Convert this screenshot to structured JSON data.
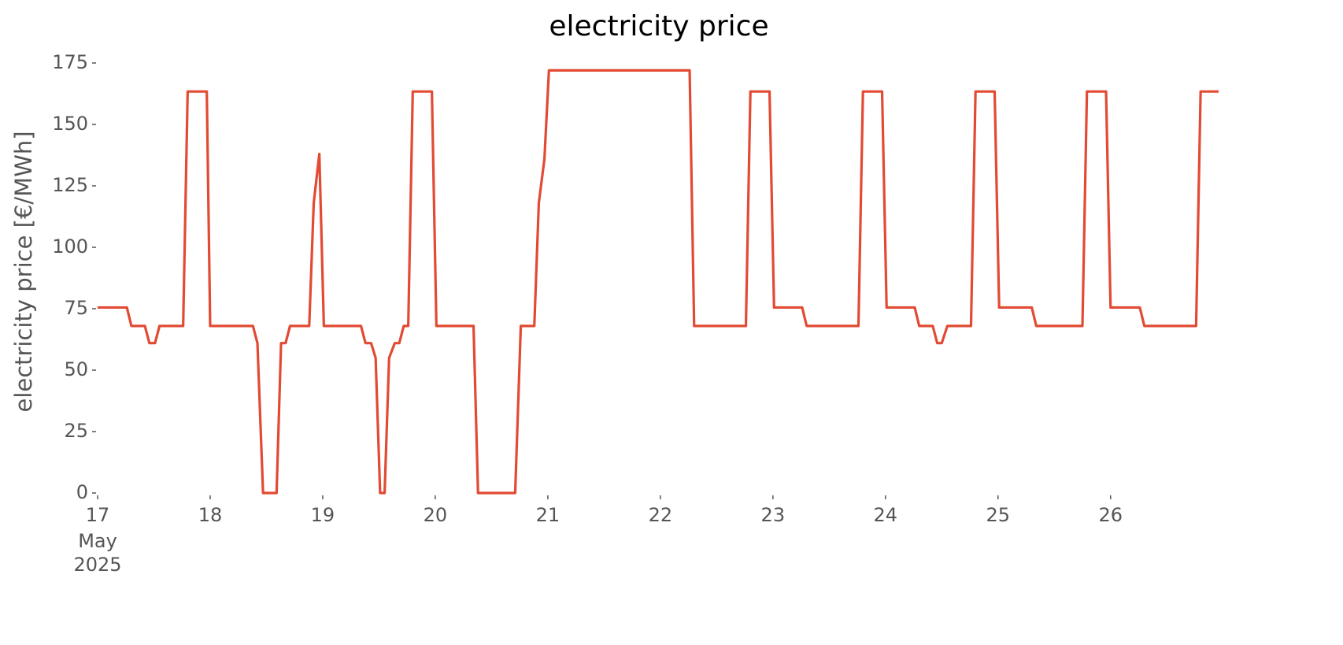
{
  "chart_data": {
    "type": "line",
    "title": "electricity price",
    "y_label": "electricity price [€/MWh]",
    "x": [
      17.0,
      17.26,
      17.3,
      17.42,
      17.46,
      17.51,
      17.55,
      17.76,
      17.8,
      17.97,
      18.0,
      18.38,
      18.42,
      18.47,
      18.59,
      18.63,
      18.67,
      18.71,
      18.88,
      18.92,
      18.97,
      19.01,
      19.34,
      19.38,
      19.43,
      19.47,
      19.51,
      19.55,
      19.59,
      19.64,
      19.68,
      19.72,
      19.76,
      19.8,
      19.97,
      20.01,
      20.34,
      20.38,
      20.71,
      20.76,
      20.88,
      20.92,
      20.97,
      21.01,
      22.26,
      22.3,
      22.76,
      22.8,
      22.97,
      23.01,
      23.26,
      23.3,
      23.76,
      23.8,
      23.97,
      24.01,
      24.26,
      24.3,
      24.42,
      24.46,
      24.5,
      24.55,
      24.76,
      24.8,
      24.97,
      25.01,
      25.3,
      25.34,
      25.75,
      25.79,
      25.96,
      26.0,
      26.26,
      26.3,
      26.76,
      26.8,
      26.96
    ],
    "series": [
      {
        "name": "electricity price",
        "color": "#e24a33",
        "values": [
          75.5,
          75.5,
          68,
          68,
          61,
          61,
          68,
          68,
          163.4,
          163.4,
          68,
          68,
          61,
          0,
          0,
          61,
          61,
          68,
          68,
          118,
          138,
          68,
          68,
          61,
          61,
          55,
          0,
          0,
          55,
          61,
          61,
          68,
          68,
          163.4,
          163.4,
          68,
          68,
          0,
          0,
          68,
          68,
          118,
          136,
          172,
          172,
          68,
          68,
          163.4,
          163.4,
          75.5,
          75.5,
          68,
          68,
          163.4,
          163.4,
          75.5,
          75.5,
          68,
          68,
          61,
          61,
          68,
          68,
          163.4,
          163.4,
          75.5,
          75.5,
          68,
          68,
          163.4,
          163.4,
          75.5,
          75.5,
          68,
          68,
          163.4,
          163.4
        ]
      }
    ],
    "xlim": [
      17,
      26.96
    ],
    "xticks": [
      17,
      18,
      19,
      20,
      21,
      22,
      23,
      24,
      25,
      26
    ],
    "x_tick_sublabels": [
      "May",
      "2025"
    ],
    "ylim": [
      0,
      175
    ],
    "yticks": [
      0,
      25,
      50,
      75,
      100,
      125,
      150,
      175
    ],
    "grid": false
  }
}
